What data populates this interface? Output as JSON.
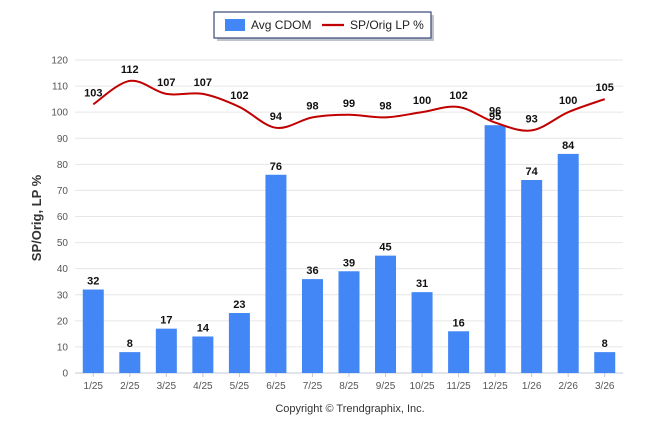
{
  "colors": {
    "bar": "#4287f5",
    "line": "#c00000",
    "grid": "#e6e6e6",
    "axis": "#c0c8d8",
    "legend_border": "#3a4a78"
  },
  "chart_data": {
    "type": "bar",
    "title": "",
    "categories": [
      "1/25",
      "2/25",
      "3/25",
      "4/25",
      "5/25",
      "6/25",
      "7/25",
      "8/25",
      "9/25",
      "10/25",
      "11/25",
      "12/25",
      "1/26",
      "2/26",
      "3/26"
    ],
    "series": [
      {
        "name": "Avg CDOM",
        "kind": "bar",
        "values": [
          32,
          8,
          17,
          14,
          23,
          76,
          36,
          39,
          45,
          31,
          16,
          95,
          74,
          84,
          8
        ]
      },
      {
        "name": "SP/Orig LP %",
        "kind": "line",
        "values": [
          103,
          112,
          107,
          107,
          102,
          94,
          98,
          99,
          98,
          100,
          102,
          96,
          93,
          100,
          105
        ]
      }
    ],
    "y_ticks": [
      "0",
      "10",
      "20",
      "30",
      "40",
      "50",
      "60",
      "70",
      "80",
      "90",
      "100",
      "110",
      "120"
    ],
    "ylim": [
      0,
      120
    ],
    "ylabel": "SP/Orig, LP %",
    "xlabel": "",
    "legend_position": "top-center",
    "grid": true
  },
  "footer": {
    "copyright": "Copyright © Trendgraphix, Inc."
  }
}
